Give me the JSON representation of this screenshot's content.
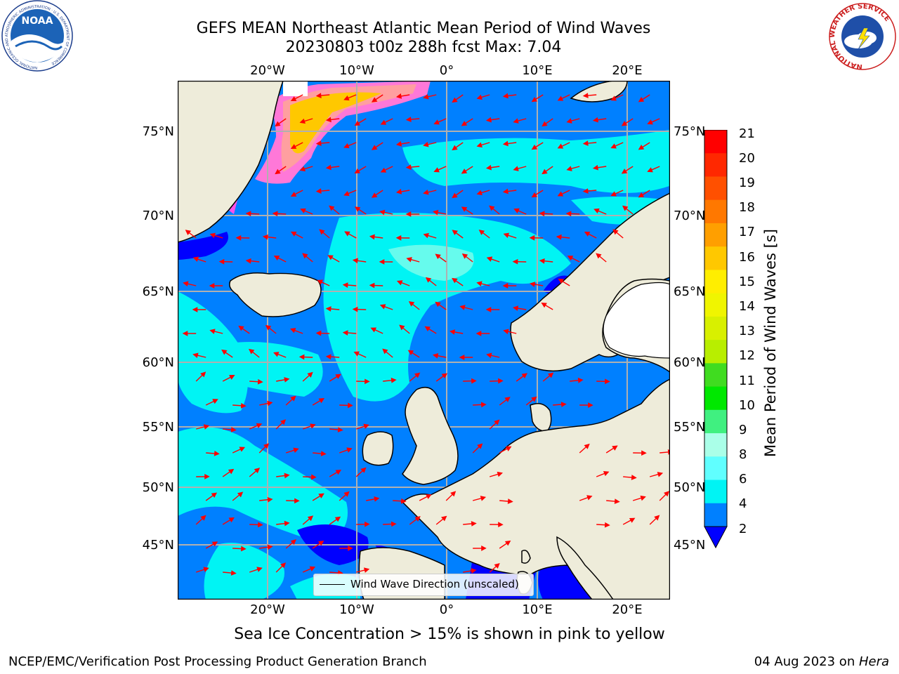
{
  "title": {
    "line1": "GEFS MEAN Northeast Atlantic Mean Period of Wind Waves",
    "line2": "20230803 t00z 288h fcst   Max: 7.04"
  },
  "axes": {
    "lon_ticks": [
      "20°W",
      "10°W",
      "0°",
      "10°E",
      "20°E"
    ],
    "lat_ticks": [
      "75°N",
      "70°N",
      "65°N",
      "60°N",
      "55°N",
      "50°N",
      "45°N"
    ]
  },
  "colorbar": {
    "title": "Mean Period of Wind Waves [s]",
    "labels": [
      "21",
      "20",
      "19",
      "18",
      "17",
      "16",
      "15",
      "14",
      "13",
      "12",
      "11",
      "10",
      "9",
      "8",
      "6",
      "4",
      "2"
    ],
    "colors": [
      "#ff0000",
      "#ff2800",
      "#ff5000",
      "#ff7800",
      "#ff9f00",
      "#ffc800",
      "#ffee00",
      "#f0f500",
      "#d8f000",
      "#b8ee00",
      "#40dc20",
      "#00e800",
      "#40f080",
      "#aaffe8",
      "#60ffff",
      "#00f4f4",
      "#0080ff"
    ],
    "under_color": "#0000ff"
  },
  "legend": {
    "label": "Wind Wave Direction (unscaled)"
  },
  "note": "Sea Ice Concentration > 15% is shown in pink to yellow",
  "footer": {
    "left": "NCEP/EMC/Verification Post Processing Product Generation Branch",
    "right_prefix": "04 Aug 2023 on ",
    "right_system": "Hera"
  },
  "logos": {
    "noaa": "NOAA",
    "noaa_ring": "NATIONAL OCEANIC AND ATMOSPHERIC ADMINISTRATION · U.S. DEPARTMENT OF COMMERCE",
    "nws_ring": "NATIONAL WEATHER SERVICE"
  },
  "colors": {
    "land": "#eeecda",
    "ocean_dark": "#0000ff",
    "ocean_mid": "#0080ff",
    "ocean_light": "#00f4f4",
    "arrow": "#ff0000",
    "grid": "#b0b0b0"
  }
}
